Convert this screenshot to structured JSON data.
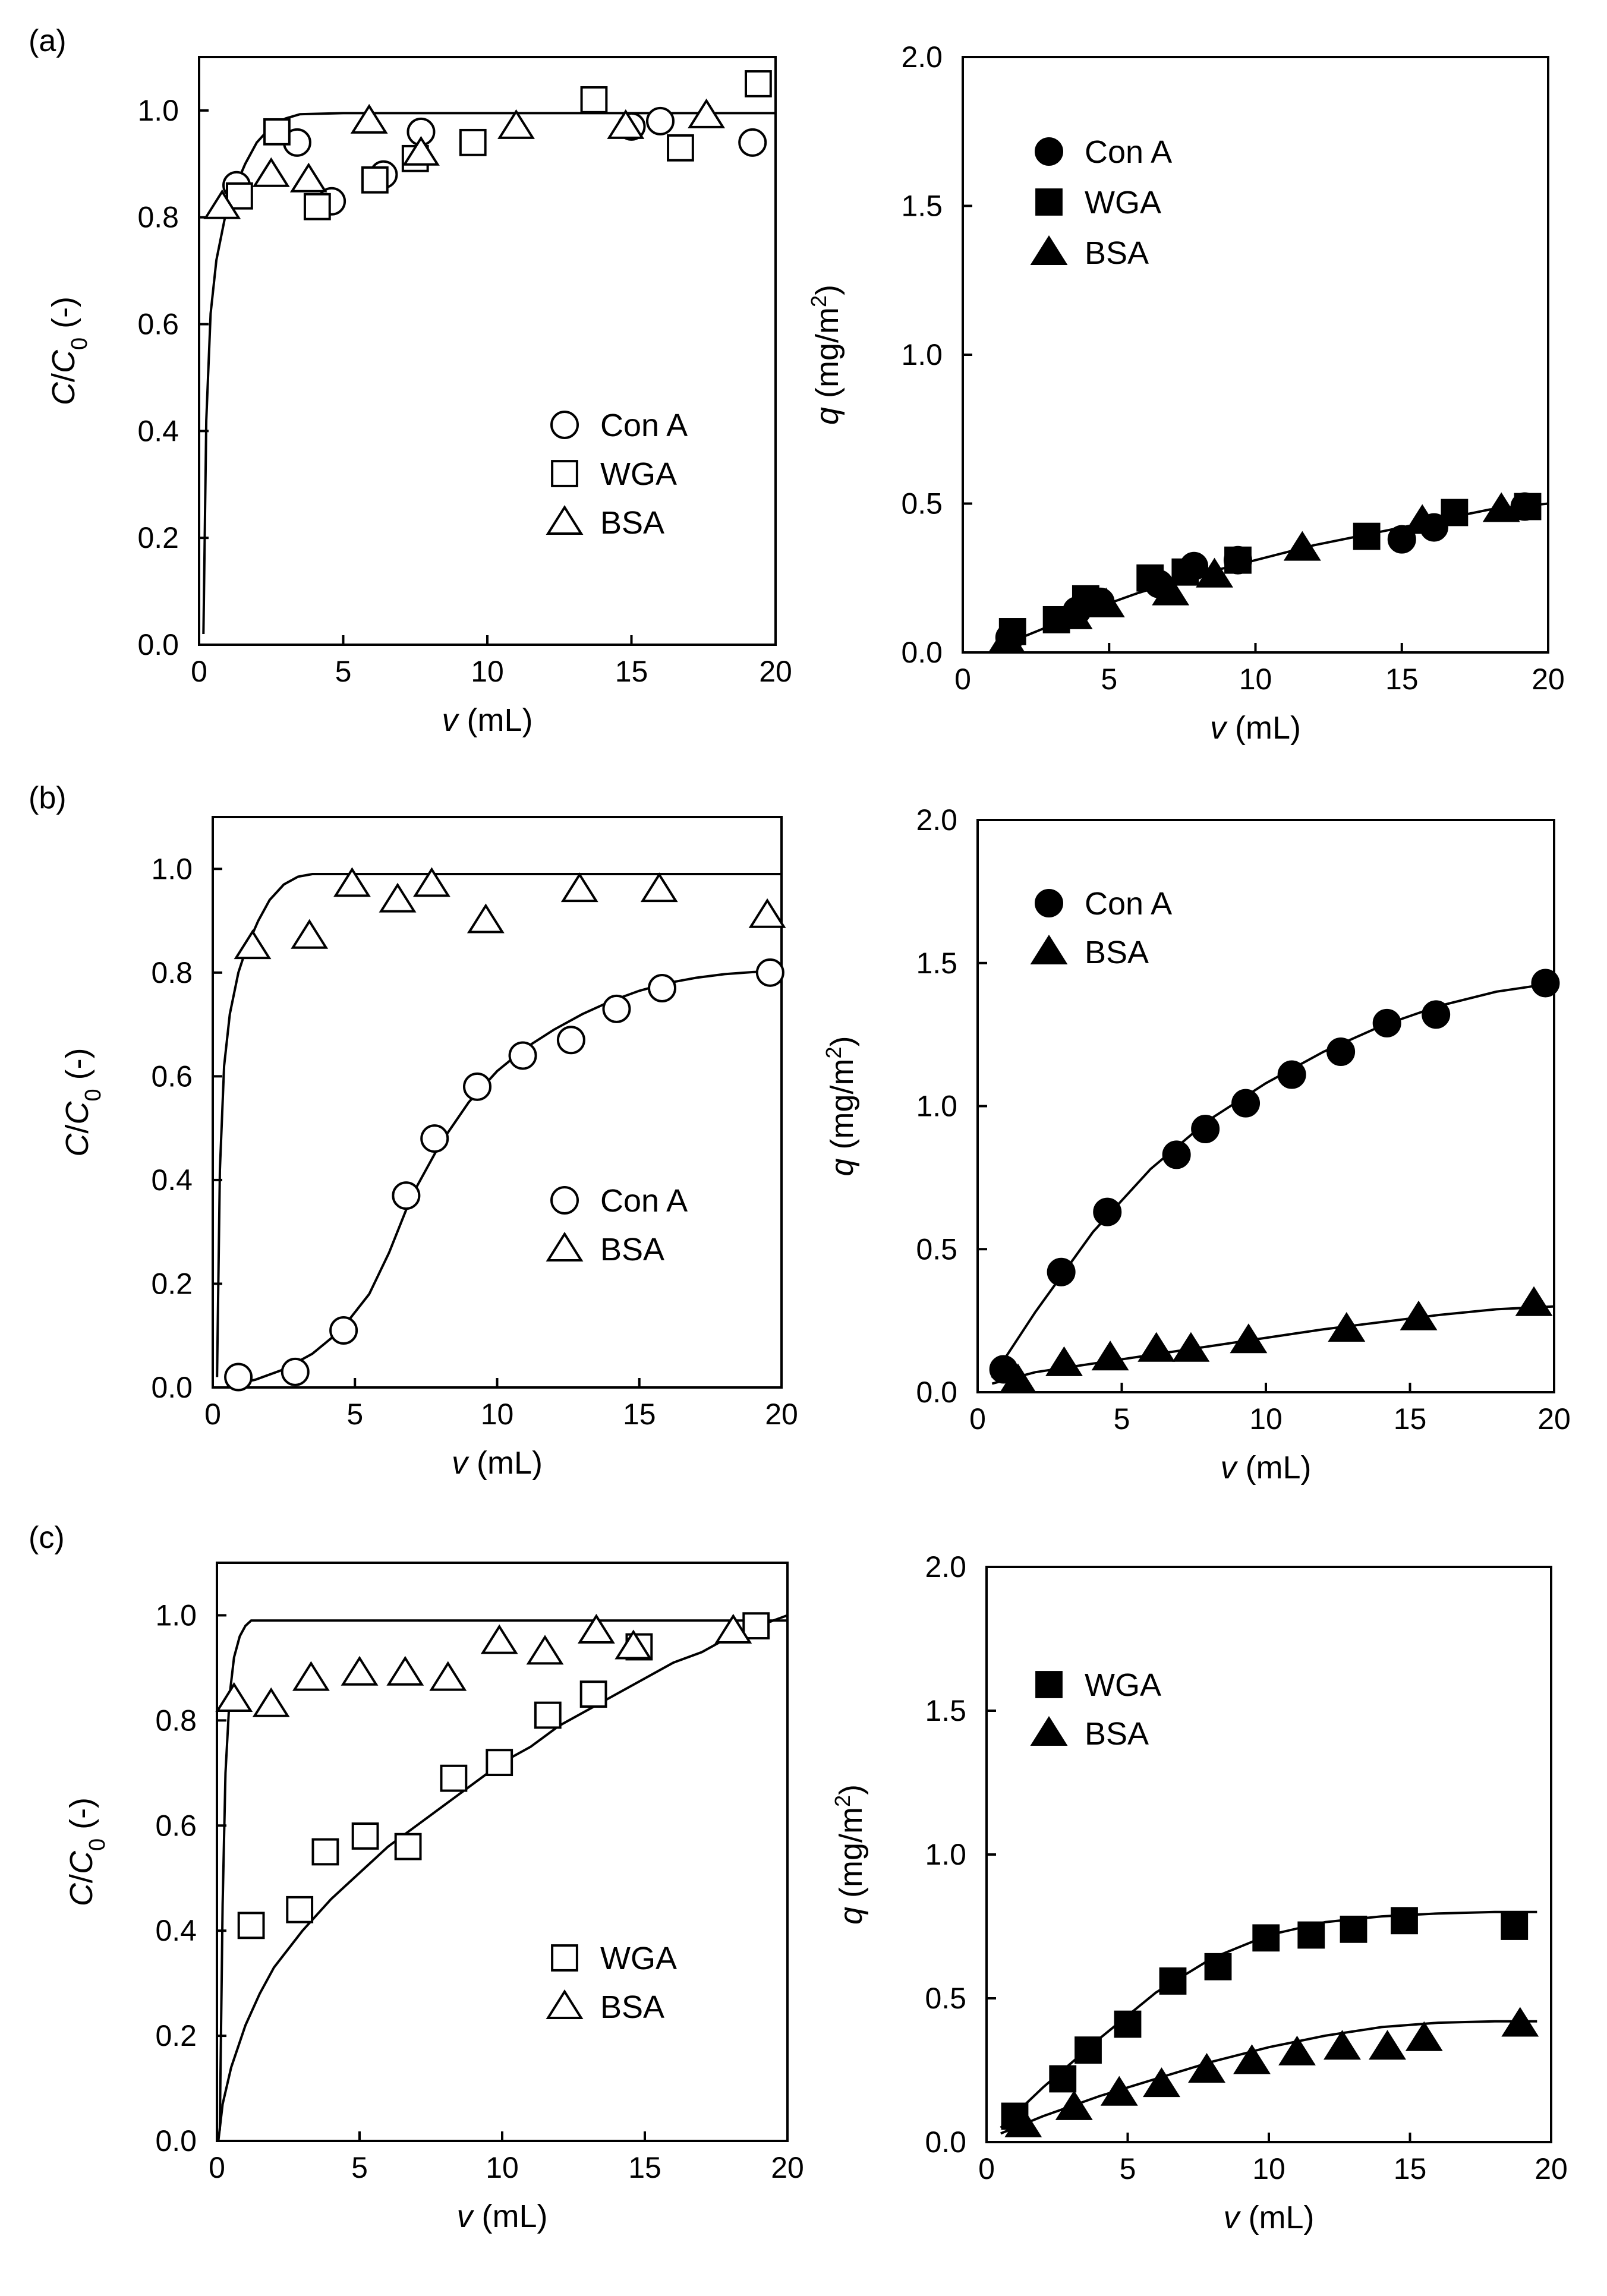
{
  "figure": {
    "panel_labels": [
      "(a)",
      "(b)",
      "(c)"
    ]
  },
  "chart_data": [
    {
      "id": "a-left",
      "type": "scatter",
      "panel": "(a)",
      "xlabel": {
        "italic": "v",
        "rest": " (mL)"
      },
      "ylabel": {
        "italic": "C",
        "mid": "/",
        "italic2": "C",
        "sub": "0",
        "rest": " (-)"
      },
      "xlim": [
        0,
        20
      ],
      "ylim": [
        0,
        1.1
      ],
      "xticks": [
        0,
        5,
        10,
        15,
        20
      ],
      "yticks": [
        0.0,
        0.2,
        0.4,
        0.6,
        0.8,
        1.0
      ],
      "ytick_labels": [
        "0.0",
        "0.2",
        "0.4",
        "0.6",
        "0.8",
        "1.0"
      ],
      "legend_position": "bottom-right",
      "series": [
        {
          "name": "Con A",
          "marker": "circle",
          "fill": "open",
          "x": [
            1.3,
            3.4,
            4.6,
            6.4,
            7.7,
            15.0,
            16.0,
            19.2
          ],
          "y": [
            0.86,
            0.94,
            0.83,
            0.88,
            0.96,
            0.97,
            0.98,
            0.94
          ]
        },
        {
          "name": "WGA",
          "marker": "square",
          "fill": "open",
          "x": [
            1.4,
            2.7,
            4.1,
            6.1,
            7.5,
            9.5,
            13.7,
            16.7,
            19.4
          ],
          "y": [
            0.84,
            0.96,
            0.82,
            0.87,
            0.91,
            0.94,
            1.02,
            0.93,
            1.05
          ]
        },
        {
          "name": "BSA",
          "marker": "triangle",
          "fill": "open",
          "x": [
            0.8,
            2.5,
            3.8,
            5.9,
            7.7,
            11.0,
            14.8,
            17.6
          ],
          "y": [
            0.82,
            0.88,
            0.87,
            0.98,
            0.92,
            0.97,
            0.97,
            0.99
          ]
        }
      ],
      "fit_lines": [
        {
          "x": [
            0.15,
            0.25,
            0.4,
            0.6,
            0.9,
            1.2,
            1.6,
            2.0,
            2.5,
            3.0,
            3.5,
            5.0,
            10.0,
            20.0
          ],
          "y": [
            0.02,
            0.42,
            0.62,
            0.72,
            0.8,
            0.85,
            0.9,
            0.94,
            0.97,
            0.985,
            0.993,
            0.995,
            0.995,
            0.995
          ]
        }
      ]
    },
    {
      "id": "a-right",
      "type": "scatter",
      "panel": "(a)",
      "xlabel": {
        "italic": "v",
        "rest": " (mL)"
      },
      "ylabel": {
        "italic": "q",
        "rest": " (mg/m",
        "sup": "2",
        "end": ")"
      },
      "xlim": [
        0,
        20
      ],
      "ylim": [
        0,
        2.0
      ],
      "xticks": [
        0,
        5,
        10,
        15,
        20
      ],
      "yticks": [
        0.0,
        0.5,
        1.0,
        1.5,
        2.0
      ],
      "ytick_labels": [
        "0.0",
        "0.5",
        "1.0",
        "1.5",
        "2.0"
      ],
      "legend_position": "top-left",
      "series": [
        {
          "name": "Con A",
          "marker": "circle",
          "fill": "solid",
          "x": [
            1.6,
            3.9,
            4.7,
            6.7,
            7.9,
            9.4,
            15.0,
            16.1,
            19.2
          ],
          "y": [
            0.05,
            0.14,
            0.17,
            0.23,
            0.29,
            0.31,
            0.38,
            0.42,
            0.49
          ]
        },
        {
          "name": "WGA",
          "marker": "square",
          "fill": "solid",
          "x": [
            1.7,
            3.2,
            4.2,
            6.4,
            7.6,
            9.4,
            13.8,
            16.8,
            19.3
          ],
          "y": [
            0.07,
            0.11,
            0.18,
            0.25,
            0.27,
            0.31,
            0.39,
            0.47,
            0.49
          ]
        },
        {
          "name": "BSA",
          "marker": "triangle",
          "fill": "solid",
          "x": [
            1.5,
            3.8,
            4.9,
            7.1,
            8.6,
            11.6,
            15.7,
            18.4
          ],
          "y": [
            0.04,
            0.12,
            0.16,
            0.2,
            0.26,
            0.35,
            0.44,
            0.48
          ]
        }
      ],
      "fit_lines": [
        {
          "x": [
            1.0,
            2.0,
            4.0,
            6.0,
            8.0,
            10.0,
            12.0,
            14.0,
            16.0,
            18.0,
            20.0
          ],
          "y": [
            0.0,
            0.05,
            0.13,
            0.2,
            0.26,
            0.31,
            0.36,
            0.4,
            0.44,
            0.48,
            0.5
          ]
        }
      ]
    },
    {
      "id": "b-left",
      "type": "scatter",
      "panel": "(b)",
      "xlabel": {
        "italic": "v",
        "rest": " (mL)"
      },
      "ylabel": {
        "italic": "C",
        "mid": "/",
        "italic2": "C",
        "sub": "0",
        "rest": " (-)"
      },
      "xlim": [
        0,
        20
      ],
      "ylim": [
        0,
        1.1
      ],
      "xticks": [
        0,
        5,
        10,
        15,
        20
      ],
      "yticks": [
        0.0,
        0.2,
        0.4,
        0.6,
        0.8,
        1.0
      ],
      "ytick_labels": [
        "0.0",
        "0.2",
        "0.4",
        "0.6",
        "0.8",
        "1.0"
      ],
      "legend_position": "bottom-right",
      "series": [
        {
          "name": "Con A",
          "marker": "circle",
          "fill": "open",
          "x": [
            0.9,
            2.9,
            4.6,
            6.8,
            7.8,
            9.3,
            10.9,
            12.6,
            14.2,
            15.8,
            19.6
          ],
          "y": [
            0.02,
            0.03,
            0.11,
            0.37,
            0.48,
            0.58,
            0.64,
            0.67,
            0.73,
            0.77,
            0.8
          ]
        },
        {
          "name": "BSA",
          "marker": "triangle",
          "fill": "open",
          "x": [
            1.4,
            3.4,
            4.9,
            6.5,
            7.7,
            9.6,
            12.9,
            15.7,
            19.5
          ],
          "y": [
            0.85,
            0.87,
            0.97,
            0.94,
            0.97,
            0.9,
            0.96,
            0.96,
            0.91
          ]
        }
      ],
      "fit_lines": [
        {
          "x": [
            0.15,
            0.25,
            0.4,
            0.6,
            0.9,
            1.2,
            1.6,
            2.0,
            2.5,
            3.0,
            3.5,
            5.0,
            10.0,
            20.0
          ],
          "y": [
            0.02,
            0.42,
            0.62,
            0.72,
            0.8,
            0.85,
            0.9,
            0.94,
            0.97,
            0.985,
            0.99,
            0.99,
            0.99,
            0.99
          ]
        },
        {
          "x": [
            0.5,
            1.5,
            2.5,
            3.5,
            4.5,
            5.5,
            6.2,
            7.0,
            8.0,
            9.0,
            10.0,
            11.0,
            12.0,
            13.0,
            14.0,
            15.0,
            16.0,
            17.0,
            18.0,
            19.0,
            20.0
          ],
          "y": [
            0.003,
            0.015,
            0.035,
            0.065,
            0.11,
            0.18,
            0.26,
            0.37,
            0.47,
            0.55,
            0.61,
            0.655,
            0.69,
            0.72,
            0.745,
            0.765,
            0.78,
            0.79,
            0.797,
            0.801,
            0.804
          ]
        }
      ]
    },
    {
      "id": "b-right",
      "type": "scatter",
      "panel": "(b)",
      "xlabel": {
        "italic": "v",
        "rest": " (mL)"
      },
      "ylabel": {
        "italic": "q",
        "rest": " (mg/m",
        "sup": "2",
        "end": ")"
      },
      "xlim": [
        0,
        20
      ],
      "ylim": [
        0,
        2.0
      ],
      "xticks": [
        0,
        5,
        10,
        15,
        20
      ],
      "yticks": [
        0.0,
        0.5,
        1.0,
        1.5,
        2.0
      ],
      "ytick_labels": [
        "0.0",
        "0.5",
        "1.0",
        "1.5",
        "2.0"
      ],
      "legend_position": "top-left",
      "series": [
        {
          "name": "Con A",
          "marker": "circle",
          "fill": "solid",
          "x": [
            0.9,
            2.9,
            4.5,
            6.9,
            7.9,
            9.3,
            10.9,
            12.6,
            14.2,
            15.9,
            19.7
          ],
          "y": [
            0.08,
            0.42,
            0.63,
            0.83,
            0.92,
            1.01,
            1.11,
            1.19,
            1.29,
            1.32,
            1.43
          ]
        },
        {
          "name": "BSA",
          "marker": "triangle",
          "fill": "solid",
          "x": [
            1.4,
            3.0,
            4.6,
            6.2,
            7.4,
            9.4,
            12.8,
            15.3,
            19.3
          ],
          "y": [
            0.04,
            0.1,
            0.12,
            0.15,
            0.15,
            0.18,
            0.22,
            0.26,
            0.31
          ]
        }
      ],
      "fit_lines": [
        {
          "x": [
            0.5,
            2.0,
            4.0,
            6.0,
            8.0,
            10.0,
            12.0,
            14.0,
            16.0,
            18.0,
            20.0
          ],
          "y": [
            0.05,
            0.28,
            0.56,
            0.78,
            0.95,
            1.08,
            1.19,
            1.28,
            1.35,
            1.4,
            1.43
          ]
        },
        {
          "x": [
            0.5,
            2.0,
            4.0,
            6.0,
            8.0,
            10.0,
            12.0,
            14.0,
            16.0,
            18.0,
            20.0
          ],
          "y": [
            0.03,
            0.07,
            0.1,
            0.13,
            0.16,
            0.19,
            0.22,
            0.245,
            0.27,
            0.29,
            0.3
          ]
        }
      ]
    },
    {
      "id": "c-left",
      "type": "scatter",
      "panel": "(c)",
      "xlabel": {
        "italic": "v",
        "rest": " (mL)"
      },
      "ylabel": {
        "italic": "C",
        "mid": "/",
        "italic2": "C",
        "sub": "0",
        "rest": " (-)"
      },
      "xlim": [
        0,
        20
      ],
      "ylim": [
        0,
        1.1
      ],
      "xticks": [
        0,
        5,
        10,
        15,
        20
      ],
      "yticks": [
        0.0,
        0.2,
        0.4,
        0.6,
        0.8,
        1.0
      ],
      "ytick_labels": [
        "0.0",
        "0.2",
        "0.4",
        "0.6",
        "0.8",
        "1.0"
      ],
      "legend_position": "bottom-right",
      "series": [
        {
          "name": "WGA",
          "marker": "square",
          "fill": "open",
          "x": [
            1.2,
            2.9,
            3.8,
            5.2,
            6.7,
            8.3,
            9.9,
            11.6,
            13.2,
            14.8,
            18.9
          ],
          "y": [
            0.41,
            0.44,
            0.55,
            0.58,
            0.56,
            0.69,
            0.72,
            0.81,
            0.85,
            0.94,
            0.98
          ]
        },
        {
          "name": "BSA",
          "marker": "triangle",
          "fill": "open",
          "x": [
            0.6,
            1.9,
            3.3,
            5.0,
            6.6,
            8.1,
            9.9,
            11.5,
            13.3,
            14.6,
            18.1
          ],
          "y": [
            0.84,
            0.83,
            0.88,
            0.89,
            0.89,
            0.88,
            0.95,
            0.93,
            0.97,
            0.94,
            0.97
          ]
        }
      ],
      "fit_lines": [
        {
          "x": [
            0.1,
            0.2,
            0.3,
            0.45,
            0.6,
            0.8,
            1.0,
            1.2,
            1.5,
            3.0,
            10.0,
            20.0
          ],
          "y": [
            0.02,
            0.45,
            0.7,
            0.85,
            0.92,
            0.96,
            0.98,
            0.99,
            0.99,
            0.99,
            0.99,
            0.99
          ]
        },
        {
          "x": [
            0.05,
            0.2,
            0.5,
            1.0,
            1.5,
            2.0,
            3.0,
            4.0,
            5.0,
            6.0,
            7.0,
            8.0,
            9.0,
            10.0,
            11.0,
            12.0,
            13.0,
            14.0,
            15.0,
            16.0,
            17.0,
            18.0,
            19.0,
            20.0
          ],
          "y": [
            0.0,
            0.07,
            0.14,
            0.22,
            0.28,
            0.33,
            0.4,
            0.46,
            0.51,
            0.56,
            0.6,
            0.64,
            0.68,
            0.72,
            0.75,
            0.79,
            0.82,
            0.85,
            0.88,
            0.91,
            0.93,
            0.96,
            0.98,
            1.0
          ]
        }
      ]
    },
    {
      "id": "c-right",
      "type": "scatter",
      "panel": "(c)",
      "xlabel": {
        "italic": "v",
        "rest": " (mL)"
      },
      "ylabel": {
        "italic": "q",
        "rest": " (mg/m",
        "sup": "2",
        "end": ")"
      },
      "xlim": [
        0,
        20
      ],
      "ylim": [
        0,
        2.0
      ],
      "xticks": [
        0,
        5,
        10,
        15,
        20
      ],
      "yticks": [
        0.0,
        0.5,
        1.0,
        1.5,
        2.0
      ],
      "ytick_labels": [
        "0.0",
        "0.5",
        "1.0",
        "1.5",
        "2.0"
      ],
      "legend_position": "center-left",
      "series": [
        {
          "name": "WGA",
          "marker": "square",
          "fill": "solid",
          "x": [
            1.0,
            2.7,
            3.6,
            5.0,
            6.6,
            8.2,
            9.9,
            11.5,
            13.0,
            14.8,
            18.7
          ],
          "y": [
            0.09,
            0.22,
            0.32,
            0.41,
            0.56,
            0.61,
            0.71,
            0.72,
            0.74,
            0.77,
            0.75
          ]
        },
        {
          "name": "BSA",
          "marker": "triangle",
          "fill": "solid",
          "x": [
            1.3,
            3.1,
            4.7,
            6.2,
            7.8,
            9.4,
            11.0,
            12.6,
            14.2,
            15.5,
            18.9
          ],
          "y": [
            0.06,
            0.12,
            0.17,
            0.2,
            0.25,
            0.28,
            0.31,
            0.33,
            0.33,
            0.36,
            0.41
          ]
        }
      ],
      "fit_lines": [
        {
          "x": [
            0.5,
            2.0,
            4.0,
            6.0,
            8.0,
            10.0,
            12.0,
            14.0,
            16.0,
            18.0,
            19.5
          ],
          "y": [
            0.05,
            0.19,
            0.36,
            0.52,
            0.64,
            0.72,
            0.765,
            0.785,
            0.795,
            0.8,
            0.8
          ]
        },
        {
          "x": [
            0.5,
            2.0,
            4.0,
            6.0,
            8.0,
            10.0,
            12.0,
            14.0,
            16.0,
            18.0,
            19.5
          ],
          "y": [
            0.03,
            0.09,
            0.16,
            0.22,
            0.28,
            0.33,
            0.37,
            0.4,
            0.415,
            0.42,
            0.42
          ]
        }
      ]
    }
  ]
}
